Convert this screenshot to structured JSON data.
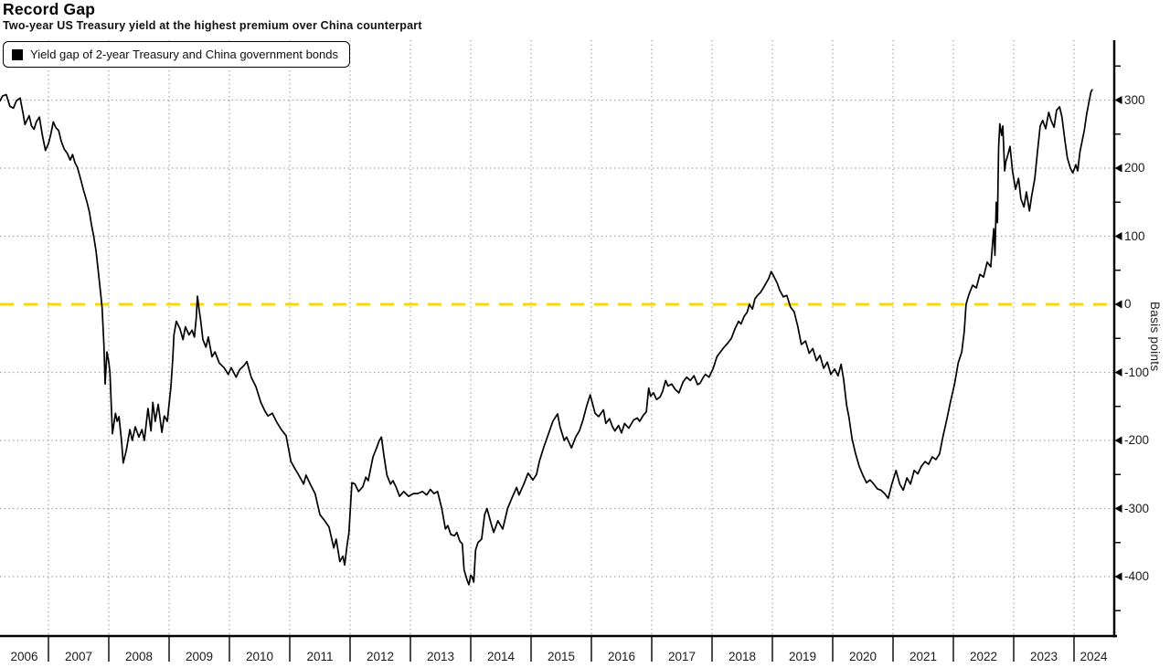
{
  "header": {
    "title": "Record Gap",
    "subtitle": "Two-year US Treasury yield at the highest premium over China counterpart"
  },
  "legend": {
    "label": "Yield gap of 2-year Treasury and China government bonds",
    "swatch_color": "#000000"
  },
  "colors": {
    "series": "#000000",
    "zero_line": "#ffd700",
    "gridline": "#9b9b9b",
    "axis": "#000000",
    "tick_text": "#1a1a1a"
  },
  "axes": {
    "y": {
      "unit_label": "Basis points",
      "major_ticks": [
        300,
        200,
        100,
        0,
        -100,
        -200,
        -300,
        -400
      ],
      "minor_ticks": [
        350,
        250,
        150,
        50,
        -50,
        -150,
        -250,
        -350,
        -450
      ],
      "gridlines": [
        300,
        200,
        100,
        -100,
        -200,
        -300,
        -400
      ],
      "zero_reference": 0
    },
    "x": {
      "year_labels": [
        "2006",
        "2007",
        "2008",
        "2009",
        "2010",
        "2011",
        "2012",
        "2013",
        "2014",
        "2015",
        "2016",
        "2017",
        "2018",
        "2019",
        "2020",
        "2021",
        "2022",
        "2023",
        "2024"
      ]
    }
  },
  "chart_data": {
    "type": "line",
    "title": "Record Gap",
    "subtitle": "Two-year US Treasury yield at the highest premium over China counterpart",
    "series_name": "Yield gap of 2-year Treasury and China government bonds",
    "ylabel": "Basis points",
    "x_range": [
      2006.2,
      2024.3
    ],
    "ylim": [
      -486,
      388
    ],
    "zero_line": 0,
    "grid": true,
    "legend_position": "top-left",
    "points": [
      [
        2006.2,
        299
      ],
      [
        2006.24,
        306
      ],
      [
        2006.3,
        308
      ],
      [
        2006.36,
        291
      ],
      [
        2006.42,
        288
      ],
      [
        2006.47,
        299
      ],
      [
        2006.53,
        303
      ],
      [
        2006.58,
        280
      ],
      [
        2006.61,
        264
      ],
      [
        2006.68,
        277
      ],
      [
        2006.72,
        262
      ],
      [
        2006.76,
        257
      ],
      [
        2006.8,
        268
      ],
      [
        2006.85,
        275
      ],
      [
        2006.9,
        248
      ],
      [
        2006.95,
        226
      ],
      [
        2007.0,
        236
      ],
      [
        2007.04,
        250
      ],
      [
        2007.08,
        268
      ],
      [
        2007.12,
        260
      ],
      [
        2007.17,
        255
      ],
      [
        2007.21,
        240
      ],
      [
        2007.26,
        228
      ],
      [
        2007.31,
        222
      ],
      [
        2007.36,
        212
      ],
      [
        2007.4,
        220
      ],
      [
        2007.44,
        208
      ],
      [
        2007.48,
        201
      ],
      [
        2007.53,
        185
      ],
      [
        2007.58,
        168
      ],
      [
        2007.64,
        150
      ],
      [
        2007.68,
        135
      ],
      [
        2007.71,
        118
      ],
      [
        2007.75,
        100
      ],
      [
        2007.79,
        78
      ],
      [
        2007.83,
        45
      ],
      [
        2007.86,
        20
      ],
      [
        2007.89,
        -5
      ],
      [
        2007.92,
        -60
      ],
      [
        2007.94,
        -117
      ],
      [
        2007.97,
        -70
      ],
      [
        2008.0,
        -85
      ],
      [
        2008.02,
        -100
      ],
      [
        2008.06,
        -190
      ],
      [
        2008.11,
        -160
      ],
      [
        2008.14,
        -172
      ],
      [
        2008.17,
        -165
      ],
      [
        2008.21,
        -200
      ],
      [
        2008.24,
        -233
      ],
      [
        2008.29,
        -215
      ],
      [
        2008.35,
        -184
      ],
      [
        2008.39,
        -200
      ],
      [
        2008.44,
        -180
      ],
      [
        2008.5,
        -195
      ],
      [
        2008.55,
        -184
      ],
      [
        2008.59,
        -200
      ],
      [
        2008.65,
        -153
      ],
      [
        2008.7,
        -186
      ],
      [
        2008.73,
        -144
      ],
      [
        2008.77,
        -172
      ],
      [
        2008.82,
        -147
      ],
      [
        2008.88,
        -188
      ],
      [
        2008.92,
        -164
      ],
      [
        2008.97,
        -172
      ],
      [
        2009.03,
        -121
      ],
      [
        2009.06,
        -80
      ],
      [
        2009.08,
        -45
      ],
      [
        2009.12,
        -25
      ],
      [
        2009.18,
        -36
      ],
      [
        2009.23,
        -52
      ],
      [
        2009.27,
        -33
      ],
      [
        2009.33,
        -45
      ],
      [
        2009.38,
        -38
      ],
      [
        2009.42,
        -48
      ],
      [
        2009.45,
        -20
      ],
      [
        2009.47,
        12
      ],
      [
        2009.5,
        -10
      ],
      [
        2009.52,
        -21
      ],
      [
        2009.56,
        -52
      ],
      [
        2009.61,
        -63
      ],
      [
        2009.65,
        -48
      ],
      [
        2009.71,
        -77
      ],
      [
        2009.76,
        -70
      ],
      [
        2009.83,
        -86
      ],
      [
        2009.91,
        -93
      ],
      [
        2009.98,
        -103
      ],
      [
        2010.03,
        -93
      ],
      [
        2010.11,
        -107
      ],
      [
        2010.17,
        -96
      ],
      [
        2010.24,
        -90
      ],
      [
        2010.29,
        -84
      ],
      [
        2010.36,
        -107
      ],
      [
        2010.44,
        -121
      ],
      [
        2010.52,
        -144
      ],
      [
        2010.59,
        -157
      ],
      [
        2010.64,
        -164
      ],
      [
        2010.71,
        -160
      ],
      [
        2010.79,
        -174
      ],
      [
        2010.86,
        -184
      ],
      [
        2010.94,
        -193
      ],
      [
        2011.02,
        -231
      ],
      [
        2011.09,
        -242
      ],
      [
        2011.15,
        -251
      ],
      [
        2011.23,
        -264
      ],
      [
        2011.27,
        -251
      ],
      [
        2011.35,
        -266
      ],
      [
        2011.42,
        -278
      ],
      [
        2011.5,
        -309
      ],
      [
        2011.58,
        -318
      ],
      [
        2011.65,
        -327
      ],
      [
        2011.73,
        -358
      ],
      [
        2011.77,
        -345
      ],
      [
        2011.83,
        -378
      ],
      [
        2011.88,
        -370
      ],
      [
        2011.91,
        -383
      ],
      [
        2011.95,
        -354
      ],
      [
        2011.98,
        -336
      ],
      [
        2012.03,
        -262
      ],
      [
        2012.08,
        -264
      ],
      [
        2012.14,
        -275
      ],
      [
        2012.21,
        -268
      ],
      [
        2012.26,
        -254
      ],
      [
        2012.3,
        -259
      ],
      [
        2012.38,
        -224
      ],
      [
        2012.44,
        -211
      ],
      [
        2012.48,
        -201
      ],
      [
        2012.52,
        -195
      ],
      [
        2012.56,
        -222
      ],
      [
        2012.61,
        -251
      ],
      [
        2012.67,
        -264
      ],
      [
        2012.71,
        -259
      ],
      [
        2012.76,
        -268
      ],
      [
        2012.82,
        -282
      ],
      [
        2012.89,
        -275
      ],
      [
        2012.97,
        -282
      ],
      [
        2013.05,
        -278
      ],
      [
        2013.12,
        -278
      ],
      [
        2013.2,
        -275
      ],
      [
        2013.27,
        -280
      ],
      [
        2013.33,
        -272
      ],
      [
        2013.39,
        -278
      ],
      [
        2013.45,
        -275
      ],
      [
        2013.52,
        -300
      ],
      [
        2013.58,
        -330
      ],
      [
        2013.62,
        -325
      ],
      [
        2013.67,
        -338
      ],
      [
        2013.73,
        -340
      ],
      [
        2013.77,
        -335
      ],
      [
        2013.82,
        -348
      ],
      [
        2013.86,
        -352
      ],
      [
        2013.89,
        -390
      ],
      [
        2013.94,
        -405
      ],
      [
        2013.97,
        -412
      ],
      [
        2014.0,
        -398
      ],
      [
        2014.02,
        -400
      ],
      [
        2014.05,
        -408
      ],
      [
        2014.08,
        -361
      ],
      [
        2014.12,
        -350
      ],
      [
        2014.18,
        -345
      ],
      [
        2014.23,
        -309
      ],
      [
        2014.27,
        -300
      ],
      [
        2014.33,
        -320
      ],
      [
        2014.38,
        -335
      ],
      [
        2014.45,
        -318
      ],
      [
        2014.53,
        -330
      ],
      [
        2014.61,
        -300
      ],
      [
        2014.68,
        -285
      ],
      [
        2014.76,
        -269
      ],
      [
        2014.8,
        -280
      ],
      [
        2014.88,
        -264
      ],
      [
        2014.95,
        -248
      ],
      [
        2015.03,
        -258
      ],
      [
        2015.09,
        -250
      ],
      [
        2015.14,
        -230
      ],
      [
        2015.21,
        -210
      ],
      [
        2015.29,
        -190
      ],
      [
        2015.36,
        -172
      ],
      [
        2015.44,
        -161
      ],
      [
        2015.48,
        -180
      ],
      [
        2015.55,
        -200
      ],
      [
        2015.59,
        -195
      ],
      [
        2015.67,
        -211
      ],
      [
        2015.74,
        -195
      ],
      [
        2015.8,
        -186
      ],
      [
        2015.86,
        -170
      ],
      [
        2015.92,
        -150
      ],
      [
        2015.98,
        -133
      ],
      [
        2016.06,
        -160
      ],
      [
        2016.12,
        -165
      ],
      [
        2016.2,
        -155
      ],
      [
        2016.24,
        -175
      ],
      [
        2016.3,
        -168
      ],
      [
        2016.35,
        -180
      ],
      [
        2016.39,
        -186
      ],
      [
        2016.45,
        -178
      ],
      [
        2016.5,
        -189
      ],
      [
        2016.55,
        -175
      ],
      [
        2016.62,
        -182
      ],
      [
        2016.7,
        -170
      ],
      [
        2016.76,
        -167
      ],
      [
        2016.8,
        -172
      ],
      [
        2016.86,
        -163
      ],
      [
        2016.91,
        -158
      ],
      [
        2016.95,
        -123
      ],
      [
        2016.98,
        -135
      ],
      [
        2017.03,
        -130
      ],
      [
        2017.08,
        -140
      ],
      [
        2017.14,
        -136
      ],
      [
        2017.18,
        -128
      ],
      [
        2017.23,
        -112
      ],
      [
        2017.27,
        -120
      ],
      [
        2017.33,
        -117
      ],
      [
        2017.39,
        -125
      ],
      [
        2017.45,
        -130
      ],
      [
        2017.52,
        -114
      ],
      [
        2017.58,
        -107
      ],
      [
        2017.64,
        -112
      ],
      [
        2017.7,
        -105
      ],
      [
        2017.76,
        -118
      ],
      [
        2017.8,
        -116
      ],
      [
        2017.85,
        -108
      ],
      [
        2017.89,
        -103
      ],
      [
        2017.95,
        -107
      ],
      [
        2018.02,
        -94
      ],
      [
        2018.08,
        -77
      ],
      [
        2018.14,
        -70
      ],
      [
        2018.2,
        -63
      ],
      [
        2018.26,
        -57
      ],
      [
        2018.32,
        -50
      ],
      [
        2018.38,
        -36
      ],
      [
        2018.44,
        -25
      ],
      [
        2018.48,
        -29
      ],
      [
        2018.53,
        -18
      ],
      [
        2018.58,
        -12
      ],
      [
        2018.62,
        0
      ],
      [
        2018.67,
        -7
      ],
      [
        2018.71,
        8
      ],
      [
        2018.76,
        14
      ],
      [
        2018.8,
        17
      ],
      [
        2018.85,
        24
      ],
      [
        2018.89,
        30
      ],
      [
        2018.94,
        38
      ],
      [
        2018.98,
        48
      ],
      [
        2019.03,
        40
      ],
      [
        2019.08,
        31
      ],
      [
        2019.12,
        21
      ],
      [
        2019.18,
        11
      ],
      [
        2019.24,
        13
      ],
      [
        2019.3,
        -4
      ],
      [
        2019.36,
        -11
      ],
      [
        2019.42,
        -32
      ],
      [
        2019.48,
        -59
      ],
      [
        2019.55,
        -54
      ],
      [
        2019.61,
        -72
      ],
      [
        2019.67,
        -65
      ],
      [
        2019.73,
        -83
      ],
      [
        2019.79,
        -75
      ],
      [
        2019.85,
        -94
      ],
      [
        2019.91,
        -85
      ],
      [
        2019.97,
        -103
      ],
      [
        2020.03,
        -95
      ],
      [
        2020.09,
        -105
      ],
      [
        2020.14,
        -88
      ],
      [
        2020.18,
        -110
      ],
      [
        2020.23,
        -148
      ],
      [
        2020.27,
        -166
      ],
      [
        2020.32,
        -197
      ],
      [
        2020.38,
        -220
      ],
      [
        2020.44,
        -238
      ],
      [
        2020.5,
        -251
      ],
      [
        2020.56,
        -262
      ],
      [
        2020.62,
        -258
      ],
      [
        2020.68,
        -264
      ],
      [
        2020.74,
        -271
      ],
      [
        2020.8,
        -273
      ],
      [
        2020.86,
        -278
      ],
      [
        2020.92,
        -285
      ],
      [
        2020.98,
        -264
      ],
      [
        2021.05,
        -244
      ],
      [
        2021.11,
        -264
      ],
      [
        2021.17,
        -273
      ],
      [
        2021.23,
        -255
      ],
      [
        2021.29,
        -264
      ],
      [
        2021.35,
        -244
      ],
      [
        2021.41,
        -249
      ],
      [
        2021.47,
        -238
      ],
      [
        2021.53,
        -231
      ],
      [
        2021.59,
        -235
      ],
      [
        2021.65,
        -224
      ],
      [
        2021.71,
        -228
      ],
      [
        2021.77,
        -220
      ],
      [
        2021.83,
        -193
      ],
      [
        2021.89,
        -170
      ],
      [
        2021.95,
        -144
      ],
      [
        2022.02,
        -117
      ],
      [
        2022.08,
        -86
      ],
      [
        2022.14,
        -70
      ],
      [
        2022.18,
        -40
      ],
      [
        2022.21,
        0
      ],
      [
        2022.26,
        15
      ],
      [
        2022.32,
        28
      ],
      [
        2022.38,
        24
      ],
      [
        2022.44,
        44
      ],
      [
        2022.5,
        40
      ],
      [
        2022.56,
        62
      ],
      [
        2022.62,
        55
      ],
      [
        2022.65,
        90
      ],
      [
        2022.67,
        111
      ],
      [
        2022.69,
        72
      ],
      [
        2022.71,
        150
      ],
      [
        2022.73,
        120
      ],
      [
        2022.75,
        230
      ],
      [
        2022.77,
        265
      ],
      [
        2022.8,
        248
      ],
      [
        2022.82,
        262
      ],
      [
        2022.85,
        196
      ],
      [
        2022.87,
        210
      ],
      [
        2022.89,
        215
      ],
      [
        2022.92,
        225
      ],
      [
        2022.94,
        232
      ],
      [
        2022.98,
        196
      ],
      [
        2023.03,
        169
      ],
      [
        2023.08,
        185
      ],
      [
        2023.12,
        155
      ],
      [
        2023.17,
        143
      ],
      [
        2023.21,
        165
      ],
      [
        2023.26,
        137
      ],
      [
        2023.3,
        160
      ],
      [
        2023.35,
        185
      ],
      [
        2023.39,
        220
      ],
      [
        2023.44,
        262
      ],
      [
        2023.48,
        270
      ],
      [
        2023.53,
        258
      ],
      [
        2023.58,
        282
      ],
      [
        2023.62,
        270
      ],
      [
        2023.67,
        260
      ],
      [
        2023.71,
        285
      ],
      [
        2023.76,
        290
      ],
      [
        2023.8,
        275
      ],
      [
        2023.85,
        240
      ],
      [
        2023.89,
        215
      ],
      [
        2023.94,
        200
      ],
      [
        2023.98,
        193
      ],
      [
        2024.03,
        205
      ],
      [
        2024.06,
        196
      ],
      [
        2024.1,
        225
      ],
      [
        2024.13,
        238
      ],
      [
        2024.17,
        255
      ],
      [
        2024.21,
        280
      ],
      [
        2024.25,
        298
      ],
      [
        2024.28,
        312
      ],
      [
        2024.3,
        315
      ]
    ]
  }
}
